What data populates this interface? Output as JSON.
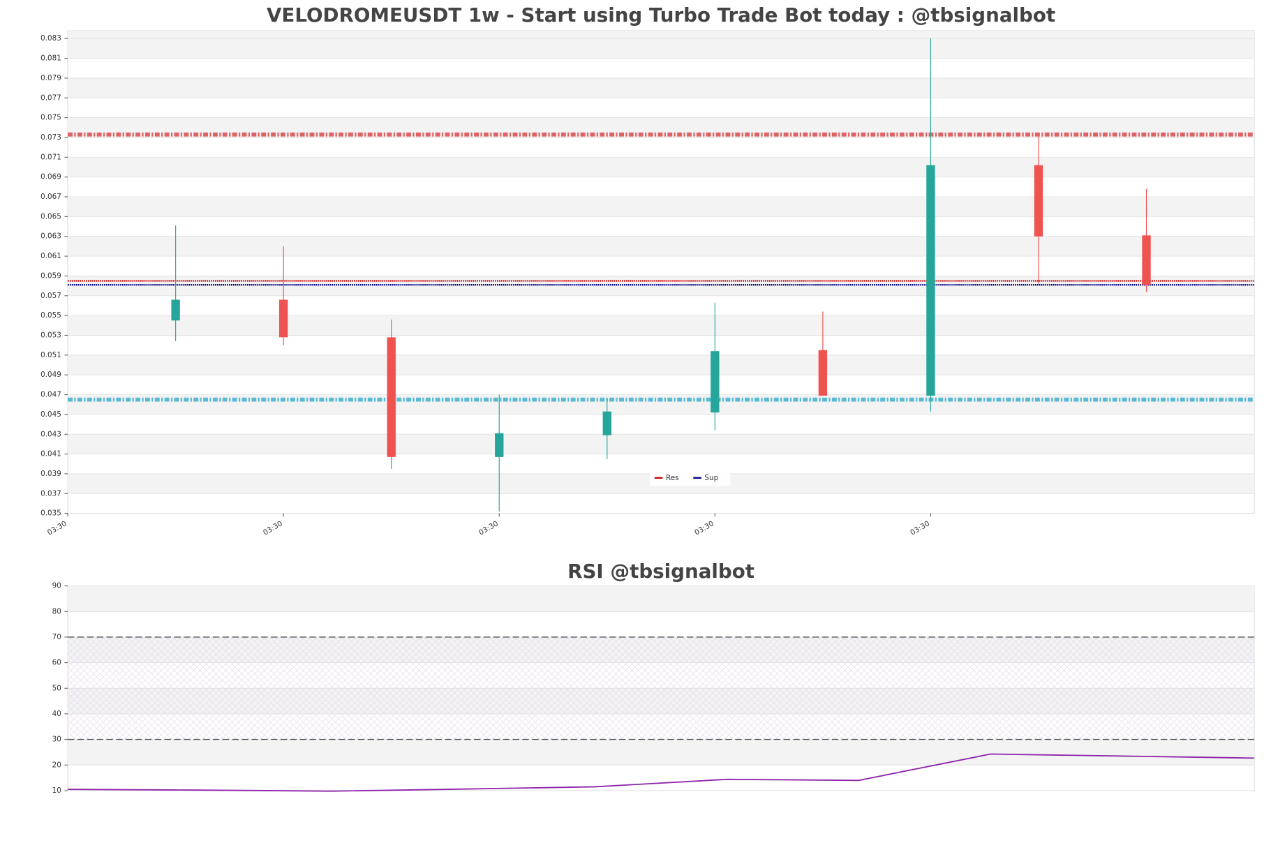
{
  "chart_data": [
    {
      "type": "candlestick",
      "title": "VELODROMEUSDT 1w - Start using Turbo Trade Bot today : @tbsignalbot",
      "x": [
        1,
        2,
        3,
        4,
        5,
        6,
        7,
        8,
        9,
        10
      ],
      "open": [
        0.0545,
        0.0566,
        0.0528,
        0.0407,
        0.0429,
        0.0452,
        0.0515,
        0.0469,
        0.0702,
        0.0631
      ],
      "high": [
        0.0641,
        0.062,
        0.0546,
        0.047,
        0.0466,
        0.0563,
        0.0554,
        0.083,
        0.0732,
        0.0678
      ],
      "low": [
        0.0524,
        0.052,
        0.0395,
        0.0352,
        0.0405,
        0.0434,
        0.0469,
        0.0453,
        0.0582,
        0.0574
      ],
      "close": [
        0.0566,
        0.0528,
        0.0407,
        0.0431,
        0.0453,
        0.0514,
        0.0469,
        0.0702,
        0.063,
        0.0581
      ],
      "up_color": "#26a69a",
      "down_color": "#ef5350",
      "xlim": [
        0,
        11
      ],
      "xticks": [
        {
          "value": 0,
          "label": "03:30"
        },
        {
          "value": 2,
          "label": "03:30"
        },
        {
          "value": 4,
          "label": "03:30"
        },
        {
          "value": 6,
          "label": "03:30"
        },
        {
          "value": 8,
          "label": "03:30"
        }
      ],
      "ylim": [
        0.035,
        0.0838
      ],
      "yticks": [
        0.035,
        0.037,
        0.039,
        0.041,
        0.043,
        0.045,
        0.047,
        0.049,
        0.051,
        0.053,
        0.055,
        0.057,
        0.059,
        0.061,
        0.063,
        0.065,
        0.067,
        0.069,
        0.071,
        0.073,
        0.075,
        0.077,
        0.079,
        0.081,
        0.083
      ],
      "grid": true,
      "levels": [
        {
          "value": 0.0733,
          "color": "#d62728",
          "style": "hatched"
        },
        {
          "value": 0.0585,
          "color": "#cc0000",
          "style": "dotted"
        },
        {
          "value": 0.0581,
          "color": "#000080",
          "style": "dotted"
        },
        {
          "value": 0.0465,
          "color": "#17a2c8",
          "style": "hatched"
        }
      ],
      "legend": [
        {
          "name": "Res",
          "color": "#cc0000"
        },
        {
          "name": "Sup",
          "color": "#000080"
        }
      ],
      "legend_loc": "lower center"
    },
    {
      "type": "line",
      "title": "RSI @tbsignalbot",
      "x": [
        0,
        1,
        2,
        3,
        4,
        5,
        6,
        7,
        8,
        9
      ],
      "values": [
        10.5,
        10.2,
        9.8,
        10.6,
        11.5,
        14.4,
        14.0,
        24.3,
        23.5,
        22.7
      ],
      "color": "#8e24aa",
      "xlim": [
        0,
        9
      ],
      "ylim": [
        10,
        90
      ],
      "yticks": [
        10,
        20,
        30,
        40,
        50,
        60,
        70,
        80,
        90
      ],
      "grid": true,
      "levels": [
        {
          "value": 70,
          "color": "#555555",
          "style": "dashed"
        },
        {
          "value": 30,
          "color": "#555555",
          "style": "dashed"
        }
      ],
      "band_between_levels": true
    }
  ]
}
